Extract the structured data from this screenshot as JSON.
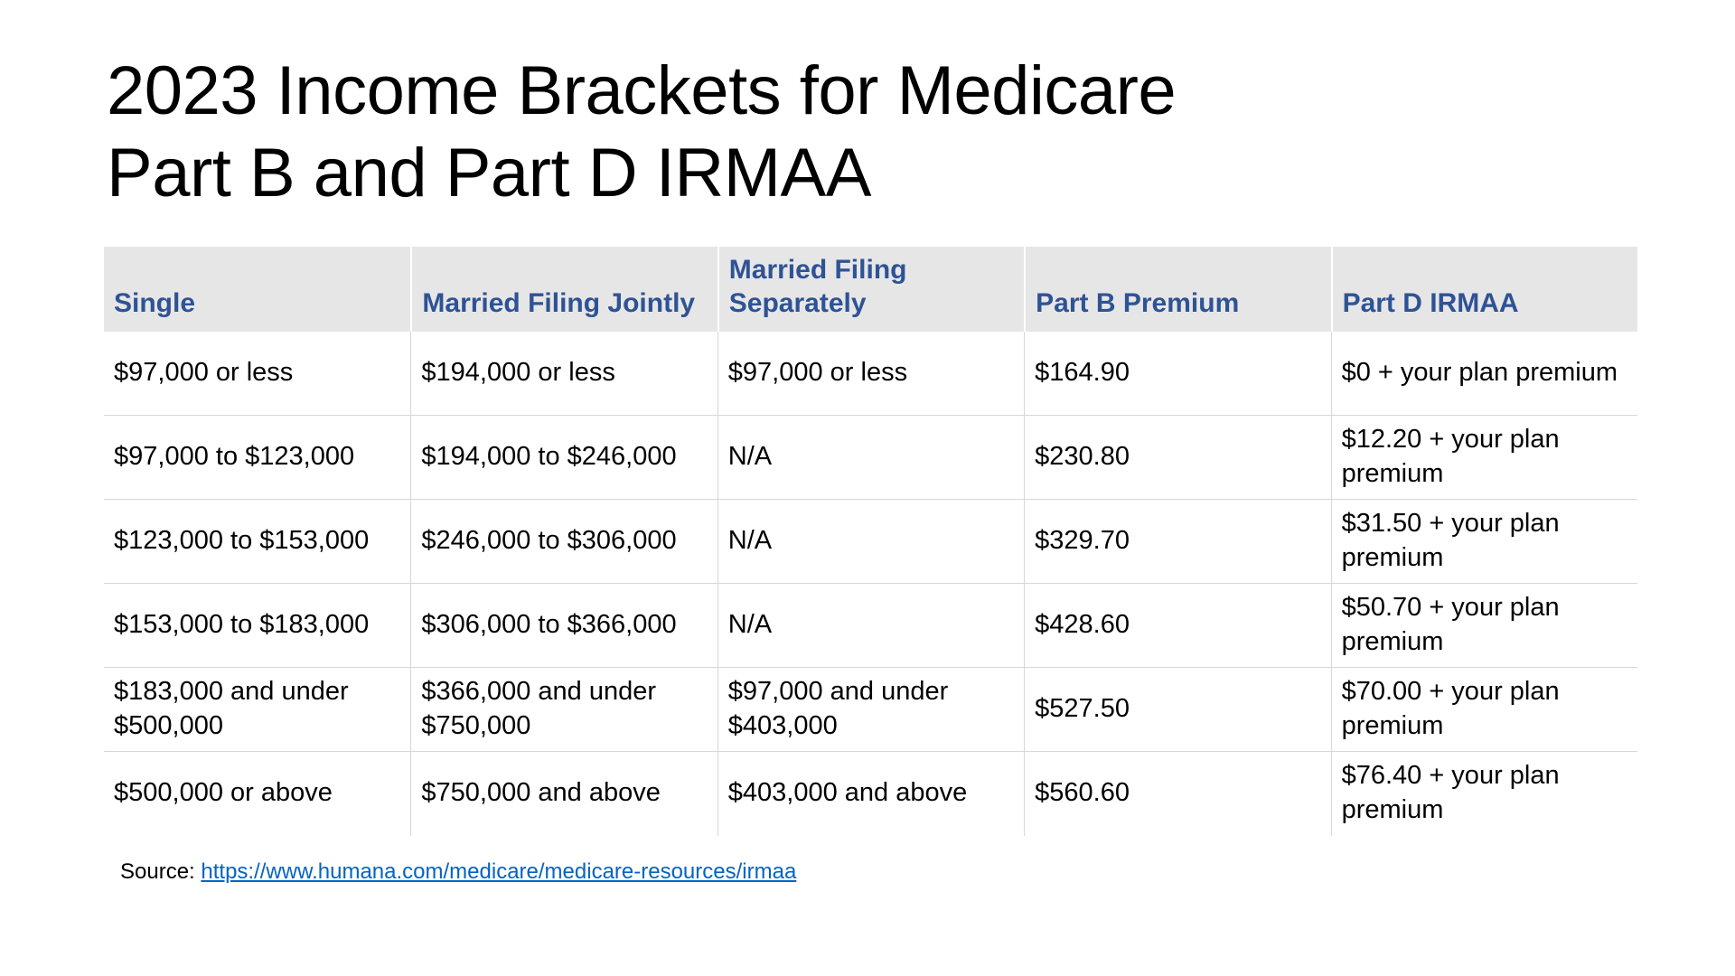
{
  "title_lines": [
    "2023 Income Brackets for Medicare",
    "Part B and Part D IRMAA"
  ],
  "table": {
    "headers": [
      {
        "lines": [
          "Single"
        ]
      },
      {
        "lines": [
          "Married Filing Jointly"
        ]
      },
      {
        "lines": [
          "Married Filing",
          "Separately"
        ]
      },
      {
        "lines": [
          "Part B Premium"
        ]
      },
      {
        "lines": [
          "Part D IRMAA"
        ]
      }
    ],
    "rows": [
      [
        "$97,000 or less",
        "$194,000 or less",
        "$97,000 or less",
        "$164.90",
        "$0 + your plan premium"
      ],
      [
        "$97,000 to $123,000",
        "$194,000 to $246,000",
        "N/A",
        "$230.80",
        "$12.20 + your plan premium"
      ],
      [
        "$123,000 to $153,000",
        "$246,000 to $306,000",
        "N/A",
        "$329.70",
        "$31.50 + your plan premium"
      ],
      [
        "$153,000 to $183,000",
        "$306,000 to $366,000",
        "N/A",
        "$428.60",
        "$50.70 + your plan premium"
      ],
      [
        "$183,000 and under $500,000",
        "$366,000 and under $750,000",
        "$97,000 and under $403,000",
        "$527.50",
        "$70.00 + your plan premium"
      ],
      [
        "$500,000 or above",
        "$750,000 and above",
        "$403,000 and above",
        "$560.60",
        "$76.40 + your plan premium"
      ]
    ]
  },
  "source": {
    "label": "Source: ",
    "link_text": "https://www.humana.com/medicare/medicare-resources/irmaa"
  },
  "colors": {
    "header_bg": "#E7E6E6",
    "header_text": "#2E5395",
    "grid_border": "#D8D6D6",
    "link": "#0563C1",
    "title_text": "#000000"
  }
}
